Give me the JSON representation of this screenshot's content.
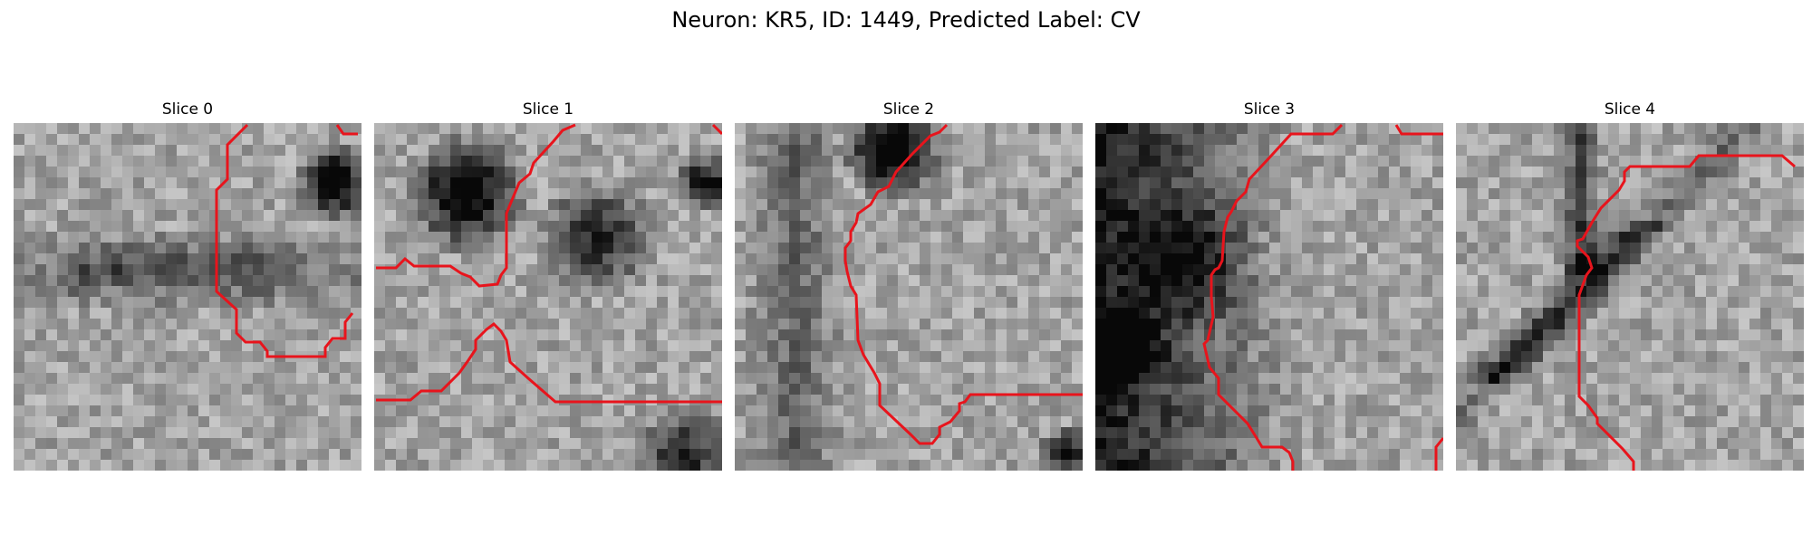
{
  "figure": {
    "title": "Neuron: KR5, ID: 1449, Predicted Label: CV"
  },
  "colors": {
    "contour": "#e8141c",
    "background": "#ffffff"
  },
  "panels": [
    {
      "title": "Slice 0",
      "seed": 11,
      "dark_regions": "upper-right band and center",
      "contour_id": "s0"
    },
    {
      "title": "Slice 1",
      "seed": 23,
      "dark_regions": "top-left and top-center blobs",
      "contour_id": "s1"
    },
    {
      "title": "Slice 2",
      "seed": 37,
      "dark_regions": "top-center blob",
      "contour_id": "s2"
    },
    {
      "title": "Slice 3",
      "seed": 41,
      "dark_regions": "left half dense",
      "contour_id": "s3"
    },
    {
      "title": "Slice 4",
      "seed": 59,
      "dark_regions": "diagonal band",
      "contour_id": "s4"
    }
  ]
}
